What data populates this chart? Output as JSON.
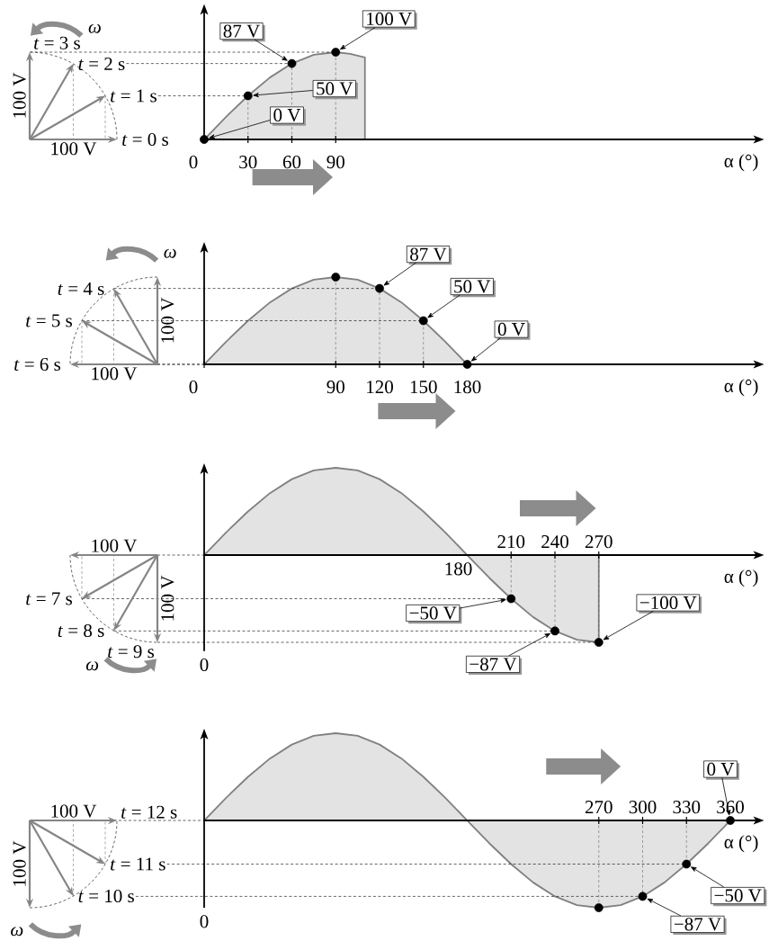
{
  "chart_data": [
    {
      "type": "area",
      "xlabel": "α (°)",
      "xlim": [
        0,
        380
      ],
      "xticks": [
        0,
        30,
        60,
        90
      ],
      "tick_labels": "x",
      "annotations": [
        "*t* = 0 s",
        "*t* = 1 s",
        "*t* = 2 s",
        "*t* = 3 s",
        "100 V",
        "100 V",
        "ω"
      ],
      "series": [
        {
          "color": "#808080",
          "x": [
            0,
            15,
            30,
            45,
            60,
            75,
            90,
            100,
            110
          ],
          "values": [
            0,
            26,
            50,
            71,
            87,
            97,
            100,
            98,
            94
          ]
        },
        {
          "type": "lollipop",
          "color": "#000000",
          "marker": "circle",
          "line_style": "dashed",
          "x": [
            0,
            30,
            60,
            90
          ],
          "values": [
            0,
            50,
            87,
            100
          ],
          "value_labels": [
            "0 V",
            "50 V",
            "87 V",
            "100 V"
          ]
        }
      ]
    },
    {
      "type": "area",
      "xlabel": "α (°)",
      "xlim": [
        0,
        380
      ],
      "xticks": [
        0,
        90,
        120,
        150,
        180
      ],
      "tick_labels": "x",
      "annotations": [
        "*t* = 4 s",
        "*t* = 5 s",
        "*t* = 6 s",
        "100 V",
        "100 V",
        "ω"
      ],
      "series": [
        {
          "color": "#808080",
          "x": [
            0,
            15,
            30,
            45,
            60,
            75,
            90,
            105,
            120,
            135,
            150,
            165,
            180
          ],
          "values": [
            0,
            26,
            50,
            71,
            87,
            97,
            100,
            97,
            87,
            71,
            50,
            26,
            0
          ]
        },
        {
          "type": "lollipop",
          "color": "#000000",
          "marker": "circle",
          "line_style": "dashed",
          "x": [
            90,
            120,
            150,
            180
          ],
          "values": [
            100,
            87,
            50,
            0
          ],
          "value_labels": [
            null,
            "87 V",
            "50 V",
            "0 V"
          ]
        }
      ]
    },
    {
      "type": "area",
      "xlabel": "α (°)",
      "xlim": [
        0,
        380
      ],
      "xticks": [
        210,
        240,
        270
      ],
      "tick_labels": "x",
      "annotations": [
        "*t* = 7 s",
        "*t* = 8 s",
        "*t* = 9 s",
        "100 V",
        "100 V",
        "ω",
        "180",
        "0"
      ],
      "series": [
        {
          "color": "#808080",
          "x": [
            0,
            15,
            30,
            45,
            60,
            75,
            90,
            105,
            120,
            135,
            150,
            165,
            180,
            195,
            210,
            225,
            240,
            255,
            270
          ],
          "values": [
            0,
            26,
            50,
            71,
            87,
            97,
            100,
            97,
            87,
            71,
            50,
            26,
            0,
            -26,
            -50,
            -71,
            -87,
            -97,
            -100
          ]
        },
        {
          "type": "lollipop",
          "color": "#000000",
          "marker": "circle",
          "line_style": "dashed",
          "x": [
            210,
            240,
            270
          ],
          "values": [
            -50,
            -87,
            -100
          ],
          "value_labels": [
            "−50 V",
            "−87 V",
            "−100 V"
          ]
        }
      ]
    },
    {
      "type": "area",
      "xlabel": "α (°)",
      "xlim": [
        0,
        380
      ],
      "xticks": [
        270,
        300,
        330,
        360
      ],
      "tick_labels": "x",
      "annotations": [
        "*t* = 10 s",
        "*t* = 11 s",
        "*t* = 12 s",
        "100 V",
        "100 V",
        "ω",
        "0"
      ],
      "series": [
        {
          "color": "#808080",
          "x": [
            0,
            15,
            30,
            45,
            60,
            75,
            90,
            105,
            120,
            135,
            150,
            165,
            180,
            195,
            210,
            225,
            240,
            255,
            270,
            285,
            300,
            315,
            330,
            345,
            360
          ],
          "values": [
            0,
            26,
            50,
            71,
            87,
            97,
            100,
            97,
            87,
            71,
            50,
            26,
            0,
            -26,
            -50,
            -71,
            -87,
            -97,
            -100,
            -97,
            -87,
            -71,
            -50,
            -26,
            0
          ]
        },
        {
          "type": "lollipop",
          "color": "#000000",
          "marker": "circle",
          "line_style": "dashed",
          "x": [
            270,
            300,
            330,
            360
          ],
          "values": [
            -100,
            -87,
            -50,
            0
          ],
          "value_labels": [
            null,
            "−87 V",
            "−50 V",
            "0 V"
          ]
        }
      ]
    }
  ]
}
